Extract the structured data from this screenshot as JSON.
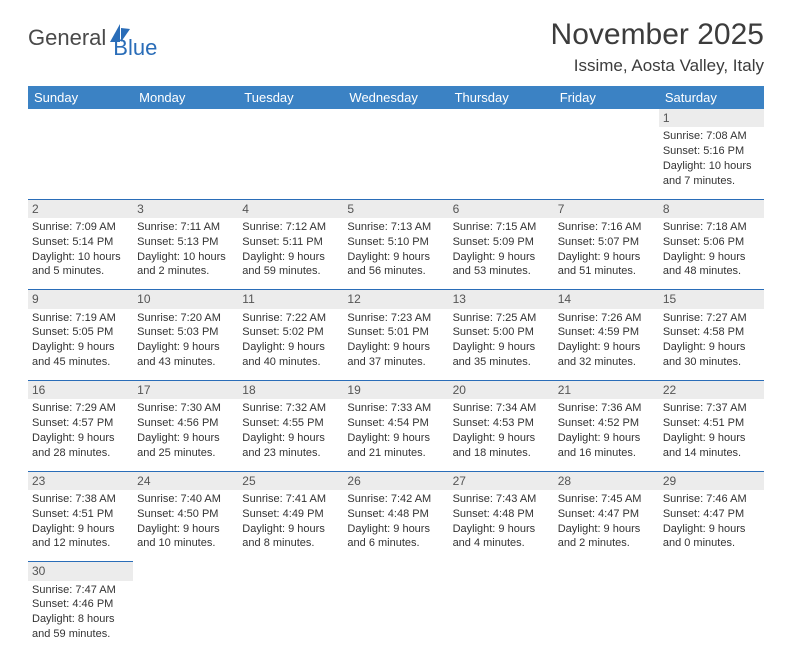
{
  "logo": {
    "general": "General",
    "blue": "Blue"
  },
  "title": "November 2025",
  "location": "Issime, Aosta Valley, Italy",
  "colors": {
    "header_bg": "#3b82c4",
    "header_text": "#ffffff",
    "daynum_bg": "#ececec",
    "divider": "#2a6db8",
    "text": "#333333",
    "title_text": "#3c3c3c"
  },
  "weekdays": [
    "Sunday",
    "Monday",
    "Tuesday",
    "Wednesday",
    "Thursday",
    "Friday",
    "Saturday"
  ],
  "weeks": [
    [
      null,
      null,
      null,
      null,
      null,
      null,
      {
        "n": "1",
        "sr": "7:08 AM",
        "ss": "5:16 PM",
        "dl": "10 hours and 7 minutes."
      }
    ],
    [
      {
        "n": "2",
        "sr": "7:09 AM",
        "ss": "5:14 PM",
        "dl": "10 hours and 5 minutes."
      },
      {
        "n": "3",
        "sr": "7:11 AM",
        "ss": "5:13 PM",
        "dl": "10 hours and 2 minutes."
      },
      {
        "n": "4",
        "sr": "7:12 AM",
        "ss": "5:11 PM",
        "dl": "9 hours and 59 minutes."
      },
      {
        "n": "5",
        "sr": "7:13 AM",
        "ss": "5:10 PM",
        "dl": "9 hours and 56 minutes."
      },
      {
        "n": "6",
        "sr": "7:15 AM",
        "ss": "5:09 PM",
        "dl": "9 hours and 53 minutes."
      },
      {
        "n": "7",
        "sr": "7:16 AM",
        "ss": "5:07 PM",
        "dl": "9 hours and 51 minutes."
      },
      {
        "n": "8",
        "sr": "7:18 AM",
        "ss": "5:06 PM",
        "dl": "9 hours and 48 minutes."
      }
    ],
    [
      {
        "n": "9",
        "sr": "7:19 AM",
        "ss": "5:05 PM",
        "dl": "9 hours and 45 minutes."
      },
      {
        "n": "10",
        "sr": "7:20 AM",
        "ss": "5:03 PM",
        "dl": "9 hours and 43 minutes."
      },
      {
        "n": "11",
        "sr": "7:22 AM",
        "ss": "5:02 PM",
        "dl": "9 hours and 40 minutes."
      },
      {
        "n": "12",
        "sr": "7:23 AM",
        "ss": "5:01 PM",
        "dl": "9 hours and 37 minutes."
      },
      {
        "n": "13",
        "sr": "7:25 AM",
        "ss": "5:00 PM",
        "dl": "9 hours and 35 minutes."
      },
      {
        "n": "14",
        "sr": "7:26 AM",
        "ss": "4:59 PM",
        "dl": "9 hours and 32 minutes."
      },
      {
        "n": "15",
        "sr": "7:27 AM",
        "ss": "4:58 PM",
        "dl": "9 hours and 30 minutes."
      }
    ],
    [
      {
        "n": "16",
        "sr": "7:29 AM",
        "ss": "4:57 PM",
        "dl": "9 hours and 28 minutes."
      },
      {
        "n": "17",
        "sr": "7:30 AM",
        "ss": "4:56 PM",
        "dl": "9 hours and 25 minutes."
      },
      {
        "n": "18",
        "sr": "7:32 AM",
        "ss": "4:55 PM",
        "dl": "9 hours and 23 minutes."
      },
      {
        "n": "19",
        "sr": "7:33 AM",
        "ss": "4:54 PM",
        "dl": "9 hours and 21 minutes."
      },
      {
        "n": "20",
        "sr": "7:34 AM",
        "ss": "4:53 PM",
        "dl": "9 hours and 18 minutes."
      },
      {
        "n": "21",
        "sr": "7:36 AM",
        "ss": "4:52 PM",
        "dl": "9 hours and 16 minutes."
      },
      {
        "n": "22",
        "sr": "7:37 AM",
        "ss": "4:51 PM",
        "dl": "9 hours and 14 minutes."
      }
    ],
    [
      {
        "n": "23",
        "sr": "7:38 AM",
        "ss": "4:51 PM",
        "dl": "9 hours and 12 minutes."
      },
      {
        "n": "24",
        "sr": "7:40 AM",
        "ss": "4:50 PM",
        "dl": "9 hours and 10 minutes."
      },
      {
        "n": "25",
        "sr": "7:41 AM",
        "ss": "4:49 PM",
        "dl": "9 hours and 8 minutes."
      },
      {
        "n": "26",
        "sr": "7:42 AM",
        "ss": "4:48 PM",
        "dl": "9 hours and 6 minutes."
      },
      {
        "n": "27",
        "sr": "7:43 AM",
        "ss": "4:48 PM",
        "dl": "9 hours and 4 minutes."
      },
      {
        "n": "28",
        "sr": "7:45 AM",
        "ss": "4:47 PM",
        "dl": "9 hours and 2 minutes."
      },
      {
        "n": "29",
        "sr": "7:46 AM",
        "ss": "4:47 PM",
        "dl": "9 hours and 0 minutes."
      }
    ],
    [
      {
        "n": "30",
        "sr": "7:47 AM",
        "ss": "4:46 PM",
        "dl": "8 hours and 59 minutes."
      },
      null,
      null,
      null,
      null,
      null,
      null
    ]
  ],
  "labels": {
    "sunrise": "Sunrise:",
    "sunset": "Sunset:",
    "daylight": "Daylight:"
  }
}
